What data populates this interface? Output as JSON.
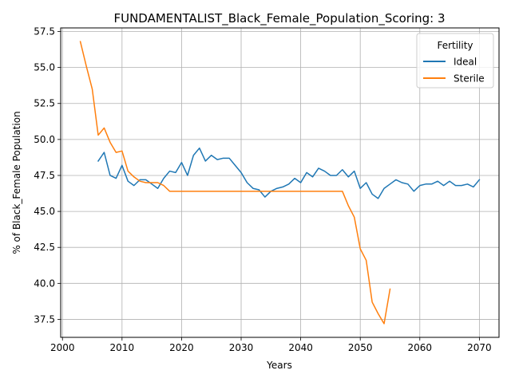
{
  "chart_data": {
    "type": "line",
    "title": "FUNDAMENTALIST_Black_Female_Population_Scoring: 3",
    "xlabel": "Years",
    "ylabel": "% of Black_Female Population",
    "xlim": [
      1999.7,
      2073.3
    ],
    "ylim": [
      36.25,
      57.75
    ],
    "xticks": [
      2000,
      2010,
      2020,
      2030,
      2040,
      2050,
      2060,
      2070
    ],
    "yticks": [
      37.5,
      40.0,
      42.5,
      45.0,
      47.5,
      50.0,
      52.5,
      55.0,
      57.5
    ],
    "grid": true,
    "legend": {
      "title": "Fertility",
      "placement": "top-right"
    },
    "series": [
      {
        "name": "Ideal",
        "color": "#1f77b4",
        "x": [
          2006,
          2007,
          2008,
          2009,
          2010,
          2011,
          2012,
          2013,
          2014,
          2015,
          2016,
          2017,
          2018,
          2019,
          2020,
          2021,
          2022,
          2023,
          2024,
          2025,
          2026,
          2027,
          2028,
          2029,
          2030,
          2031,
          2032,
          2033,
          2034,
          2035,
          2036,
          2037,
          2038,
          2039,
          2040,
          2041,
          2042,
          2043,
          2044,
          2045,
          2046,
          2047,
          2048,
          2049,
          2050,
          2051,
          2052,
          2053,
          2054,
          2055,
          2056,
          2057,
          2058,
          2059,
          2060,
          2061,
          2062,
          2063,
          2064,
          2065,
          2066,
          2067,
          2068,
          2069,
          2070
        ],
        "values": [
          48.5,
          49.1,
          47.5,
          47.3,
          48.2,
          47.1,
          46.8,
          47.2,
          47.2,
          46.9,
          46.6,
          47.3,
          47.8,
          47.7,
          48.4,
          47.5,
          48.9,
          49.4,
          48.5,
          48.9,
          48.6,
          48.7,
          48.7,
          48.2,
          47.7,
          47.0,
          46.6,
          46.5,
          46.0,
          46.4,
          46.6,
          46.7,
          46.9,
          47.3,
          47.0,
          47.7,
          47.4,
          48.0,
          47.8,
          47.5,
          47.5,
          47.9,
          47.4,
          47.8,
          46.6,
          47.0,
          46.2,
          45.9,
          46.6,
          46.9,
          47.2,
          47.0,
          46.9,
          46.4,
          46.8,
          46.9,
          46.9,
          47.1,
          46.8,
          47.1,
          46.8,
          46.8,
          46.9,
          46.7,
          47.2
        ]
      },
      {
        "name": "Sterile",
        "color": "#ff7f0e",
        "x": [
          2003,
          2004,
          2005,
          2006,
          2007,
          2008,
          2009,
          2010,
          2011,
          2012,
          2013,
          2014,
          2015,
          2016,
          2017,
          2018,
          2019,
          2020,
          2021,
          2022,
          2023,
          2024,
          2025,
          2026,
          2027,
          2028,
          2029,
          2030,
          2031,
          2032,
          2033,
          2034,
          2035,
          2036,
          2037,
          2038,
          2039,
          2040,
          2041,
          2042,
          2043,
          2044,
          2045,
          2046,
          2047,
          2048,
          2049,
          2050,
          2051,
          2052,
          2053,
          2054,
          2055
        ],
        "values": [
          56.8,
          55.1,
          53.5,
          50.3,
          50.8,
          49.8,
          49.1,
          49.2,
          47.8,
          47.4,
          47.1,
          47.0,
          47.0,
          47.0,
          46.8,
          46.4,
          46.4,
          46.4,
          46.4,
          46.4,
          46.4,
          46.4,
          46.4,
          46.4,
          46.4,
          46.4,
          46.4,
          46.4,
          46.4,
          46.4,
          46.4,
          46.4,
          46.4,
          46.4,
          46.4,
          46.4,
          46.4,
          46.4,
          46.4,
          46.4,
          46.4,
          46.4,
          46.4,
          46.4,
          46.4,
          45.4,
          44.6,
          42.4,
          41.6,
          38.7,
          37.9,
          37.2,
          39.6
        ]
      }
    ]
  }
}
